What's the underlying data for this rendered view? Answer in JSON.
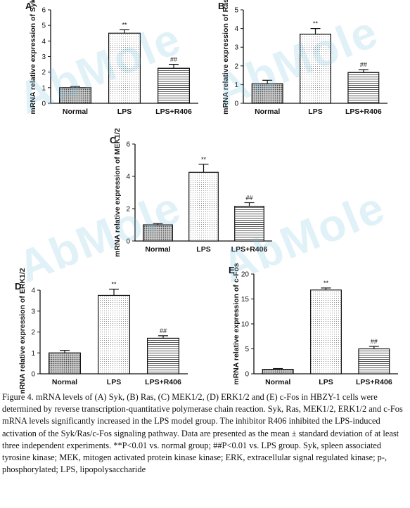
{
  "figure": {
    "watermark_text": "AbMole",
    "caption": "Figure 4. mRNA levels of (A) Syk, (B) Ras, (C) MEK1/2, (D) ERK1/2 and (E) c-Fos in HBZY-1 cells were determined by reverse transcription-quantitative polymerase chain reaction. Syk, Ras, MEK1/2, ERK1/2 and c-Fos mRNA levels significantly increased in the LPS model group. The inhibitor R406 inhibited the LPS-induced activation of the Syk/Ras/c-Fos signaling pathway. Data are presented as the mean ± standard deviation of at least three independent experiments. **P<0.01 vs. normal group; ##P<0.01 vs. LPS group. Syk, spleen associated tyrosine kinase; MEK, mitogen activated protein kinase kinase; ERK, extracellular signal regulated kinase; p-, phosphorylated; LPS, lipopolysaccharide"
  },
  "chart_data": [
    {
      "panel": "A",
      "type": "bar",
      "categories": [
        "Normal",
        "LPS",
        "LPS+R406"
      ],
      "values": [
        1.0,
        4.5,
        2.25
      ],
      "errors": [
        0.08,
        0.22,
        0.25
      ],
      "annotations": [
        "",
        "**",
        "##"
      ],
      "ylabel": "mRNA relative expression of Syk",
      "ylim": [
        0,
        6
      ],
      "yticks": [
        0,
        1,
        2,
        3,
        4,
        5,
        6
      ],
      "patterns": [
        "dense-dots",
        "fine-dots",
        "hlines"
      ]
    },
    {
      "panel": "B",
      "type": "bar",
      "categories": [
        "Normal",
        "LPS",
        "LPS+R406"
      ],
      "values": [
        1.05,
        3.7,
        1.65
      ],
      "errors": [
        0.18,
        0.3,
        0.15
      ],
      "annotations": [
        "",
        "**",
        "##"
      ],
      "ylabel": "mRNA relative expression of Ras",
      "ylim": [
        0,
        5
      ],
      "yticks": [
        0,
        1,
        2,
        3,
        4,
        5
      ],
      "patterns": [
        "dense-dots",
        "fine-dots",
        "hlines"
      ]
    },
    {
      "panel": "C",
      "type": "bar",
      "categories": [
        "Normal",
        "LPS",
        "LPS+R406"
      ],
      "values": [
        1.0,
        4.25,
        2.15
      ],
      "errors": [
        0.08,
        0.5,
        0.22
      ],
      "annotations": [
        "",
        "**",
        "##"
      ],
      "ylabel": "mRNA relative expression of MEK1/2",
      "ylim": [
        0,
        6
      ],
      "yticks": [
        0,
        2,
        4,
        6
      ],
      "patterns": [
        "dense-dots",
        "fine-dots",
        "hlines"
      ]
    },
    {
      "panel": "D",
      "type": "bar",
      "categories": [
        "Normal",
        "LPS",
        "LPS+R406"
      ],
      "values": [
        1.0,
        3.75,
        1.7
      ],
      "errors": [
        0.12,
        0.3,
        0.12
      ],
      "annotations": [
        "",
        "**",
        "##"
      ],
      "ylabel": "mRNA relative expression of ERK1/2",
      "ylim": [
        0,
        4
      ],
      "yticks": [
        0,
        1,
        2,
        3,
        4
      ],
      "patterns": [
        "dense-dots",
        "fine-dots",
        "hlines"
      ]
    },
    {
      "panel": "E",
      "type": "bar",
      "categories": [
        "Normal",
        "LPS",
        "LPS+R406"
      ],
      "values": [
        0.9,
        16.8,
        5.0
      ],
      "errors": [
        0.15,
        0.4,
        0.5
      ],
      "annotations": [
        "",
        "**",
        "##"
      ],
      "ylabel": "mRNA relative expression of c-Fos",
      "ylim": [
        0,
        20
      ],
      "yticks": [
        0,
        5,
        10,
        15,
        20
      ],
      "patterns": [
        "dense-dots",
        "fine-dots",
        "hlines"
      ]
    }
  ]
}
